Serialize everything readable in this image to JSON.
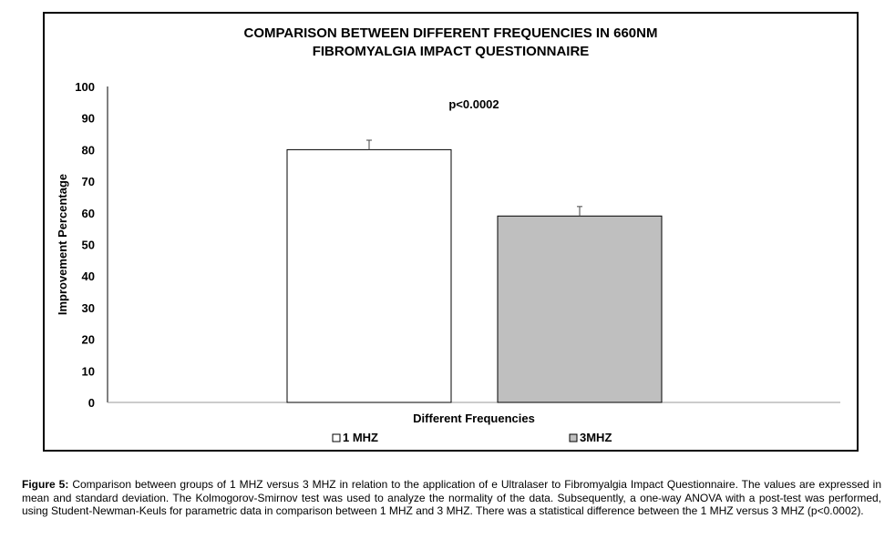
{
  "chart_data": {
    "type": "bar",
    "title_lines": [
      "COMPARISON BETWEEN DIFFERENT FREQUENCIES IN 660NM",
      "FIBROMYALGIA IMPACT QUESTIONNAIRE"
    ],
    "xlabel": "Different Frequencies",
    "ylabel": "Improvement Percentage",
    "ylim": [
      0,
      100
    ],
    "y_ticks": [
      "0",
      "10",
      "20",
      "30",
      "40",
      "50",
      "60",
      "70",
      "80",
      "90",
      "100"
    ],
    "categories": [
      "1 MHZ",
      "3MHZ"
    ],
    "values": [
      80,
      59
    ],
    "error": [
      3,
      3
    ],
    "colors": [
      "#ffffff",
      "#bfbfbf"
    ],
    "annotation": "p<0.0002",
    "legend": [
      {
        "label": "1 MHZ",
        "color": "#ffffff"
      },
      {
        "label": "3MHZ",
        "color": "#bfbfbf"
      }
    ],
    "legend_position": "bottom",
    "grid": false
  },
  "caption": {
    "label": "Figure 5:",
    "text": "Comparison between groups of 1 MHZ versus 3 MHZ in relation to the application of e Ultralaser to Fibromyalgia Impact Questionnaire. The values are expressed in mean and standard deviation. The Kolmogorov-Smirnov test was used to analyze the normality of the data. Subsequently, a one-way ANOVA with a post-test was performed, using Student-Newman-Keuls for parametric data in comparison between 1 MHZ and 3 MHZ. There was a statistical difference between the 1 MHZ versus 3 MHZ (p<0.0002)."
  }
}
